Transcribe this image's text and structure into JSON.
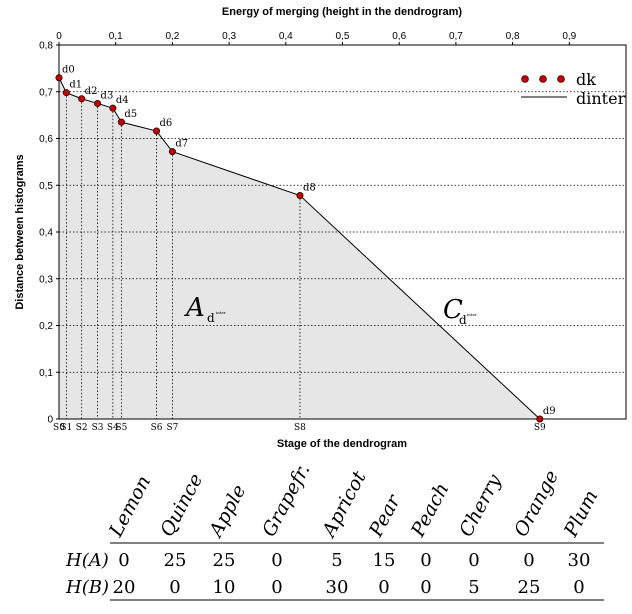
{
  "chart_data": {
    "type": "line",
    "xlabel_top": "Energy of merging (height in the dendrogram)",
    "xlabel": "Stage of the dendrogram",
    "ylabel": "Distance between histograms",
    "xlim": [
      0,
      1.0
    ],
    "ylim": [
      0,
      0.8
    ],
    "x_ticks": [
      0,
      0.1,
      0.2,
      0.3,
      0.4,
      0.5,
      0.6,
      0.7,
      0.8,
      0.9
    ],
    "x_tick_labels": [
      "0",
      "0,1",
      "0,2",
      "0,3",
      "0,4",
      "0,5",
      "0,6",
      "0,7",
      "0,8",
      "0,9"
    ],
    "y_ticks": [
      0,
      0.1,
      0.2,
      0.3,
      0.4,
      0.5,
      0.6,
      0.7,
      0.8
    ],
    "y_tick_labels": [
      "0",
      "0,1",
      "0,2",
      "0,3",
      "0,4",
      "0,5",
      "0,6",
      "0,7",
      "0,8"
    ],
    "grid": "horizontal dotted",
    "legend_position": "top-right",
    "points": [
      {
        "label": "d0",
        "stage": "S0",
        "x": 0.0,
        "y": 0.73
      },
      {
        "label": "d1",
        "stage": "S1",
        "x": 0.013,
        "y": 0.698
      },
      {
        "label": "d2",
        "stage": "S2",
        "x": 0.04,
        "y": 0.685
      },
      {
        "label": "d3",
        "stage": "S3",
        "x": 0.068,
        "y": 0.675
      },
      {
        "label": "d4",
        "stage": "S4",
        "x": 0.095,
        "y": 0.665
      },
      {
        "label": "d5",
        "stage": "S5",
        "x": 0.11,
        "y": 0.635
      },
      {
        "label": "d6",
        "stage": "S6",
        "x": 0.172,
        "y": 0.616
      },
      {
        "label": "d7",
        "stage": "S7",
        "x": 0.2,
        "y": 0.572
      },
      {
        "label": "d8",
        "stage": "S8",
        "x": 0.425,
        "y": 0.478
      },
      {
        "label": "d9",
        "stage": "S9",
        "x": 0.848,
        "y": 0.0
      }
    ],
    "legend": {
      "dots": "dk",
      "line": "dinter"
    },
    "area_label": "A",
    "curve_label": "C",
    "area_subscript": "d",
    "area_subscript_sup": "inter",
    "curve_subscript": "d",
    "curve_subscript_sup": "inter"
  },
  "table": {
    "columns": [
      "Lemon",
      "Quince",
      "Apple",
      "Grapefr.",
      "Apricot",
      "Pear",
      "Peach",
      "Cherry",
      "Orange",
      "Plum"
    ],
    "rows": [
      {
        "label": "H(A)",
        "values": [
          "0",
          "25",
          "25",
          "0",
          "5",
          "15",
          "0",
          "0",
          "0",
          "30"
        ]
      },
      {
        "label": "H(B)",
        "values": [
          "20",
          "0",
          "10",
          "0",
          "30",
          "0",
          "0",
          "5",
          "25",
          "0"
        ]
      }
    ]
  },
  "colors": {
    "point_fill": "#c00000",
    "area_fill": "#e6e6e6",
    "line": "#000000"
  }
}
